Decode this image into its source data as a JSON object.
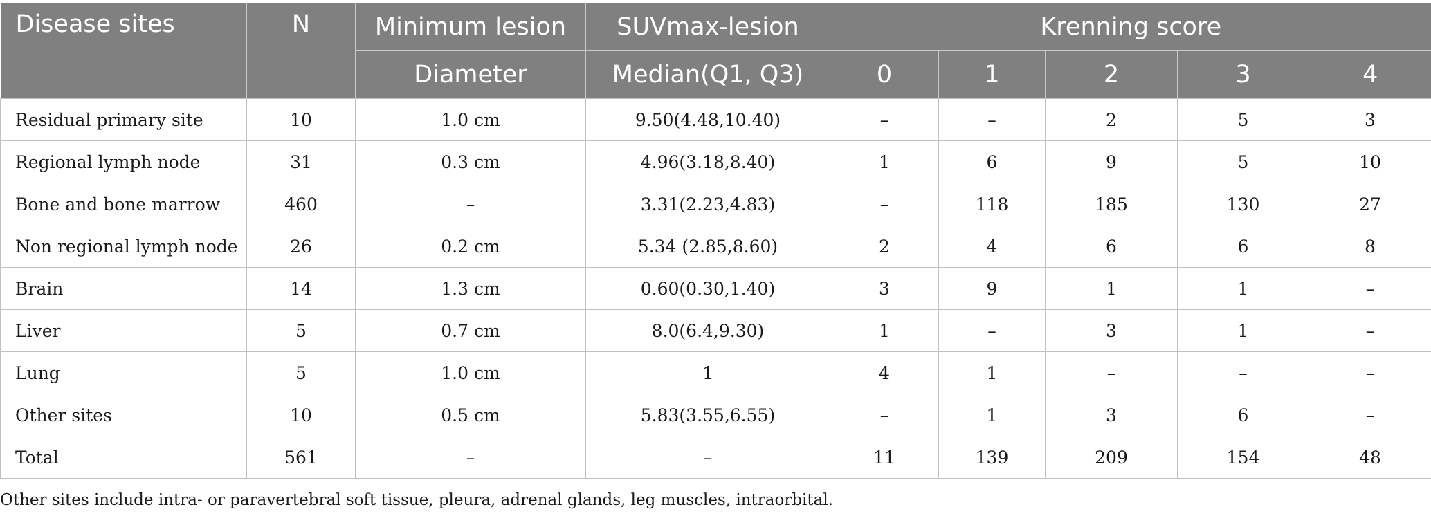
{
  "header": {
    "row1": {
      "disease_sites": "Disease sites",
      "n": "N",
      "min_lesion": "Minimum lesion",
      "suvmax": "SUVmax-lesion",
      "krenning": "Krenning score"
    },
    "row2": {
      "diameter": "Diameter",
      "median": "Median(Q1, Q3)",
      "scores": [
        "0",
        "1",
        "2",
        "3",
        "4"
      ]
    }
  },
  "rows": [
    {
      "site": "Residual primary site",
      "n": "10",
      "diameter": "1.0 cm",
      "suv": "9.50(4.48,10.40)",
      "k0": "–",
      "k1": "–",
      "k2": "2",
      "k3": "5",
      "k4": "3"
    },
    {
      "site": "Regional lymph node",
      "n": "31",
      "diameter": "0.3 cm",
      "suv": "4.96(3.18,8.40)",
      "k0": "1",
      "k1": "6",
      "k2": "9",
      "k3": "5",
      "k4": "10"
    },
    {
      "site": "Bone and bone marrow",
      "n": "460",
      "diameter": "–",
      "suv": "3.31(2.23,4.83)",
      "k0": "–",
      "k1": "118",
      "k2": "185",
      "k3": "130",
      "k4": "27"
    },
    {
      "site": "Non regional lymph node",
      "n": "26",
      "diameter": "0.2 cm",
      "suv": "5.34 (2.85,8.60)",
      "k0": "2",
      "k1": "4",
      "k2": "6",
      "k3": "6",
      "k4": "8"
    },
    {
      "site": "Brain",
      "n": "14",
      "diameter": "1.3 cm",
      "suv": "0.60(0.30,1.40)",
      "k0": "3",
      "k1": "9",
      "k2": "1",
      "k3": "1",
      "k4": "–"
    },
    {
      "site": "Liver",
      "n": "5",
      "diameter": "0.7 cm",
      "suv": "8.0(6.4,9.30)",
      "k0": "1",
      "k1": "–",
      "k2": "3",
      "k3": "1",
      "k4": "–"
    },
    {
      "site": "Lung",
      "n": "5",
      "diameter": "1.0 cm",
      "suv": "1",
      "k0": "4",
      "k1": "1",
      "k2": "–",
      "k3": "–",
      "k4": "–"
    },
    {
      "site": "Other sites",
      "n": "10",
      "diameter": "0.5 cm",
      "suv": "5.83(3.55,6.55)",
      "k0": "–",
      "k1": "1",
      "k2": "3",
      "k3": "6",
      "k4": "–"
    },
    {
      "site": "Total",
      "n": "561",
      "diameter": "–",
      "suv": "–",
      "k0": "11",
      "k1": "139",
      "k2": "209",
      "k3": "154",
      "k4": "48"
    }
  ],
  "footnote": "Other sites include intra- or paravertebral soft tissue, pleura, adrenal glands, leg muscles, intraorbital."
}
